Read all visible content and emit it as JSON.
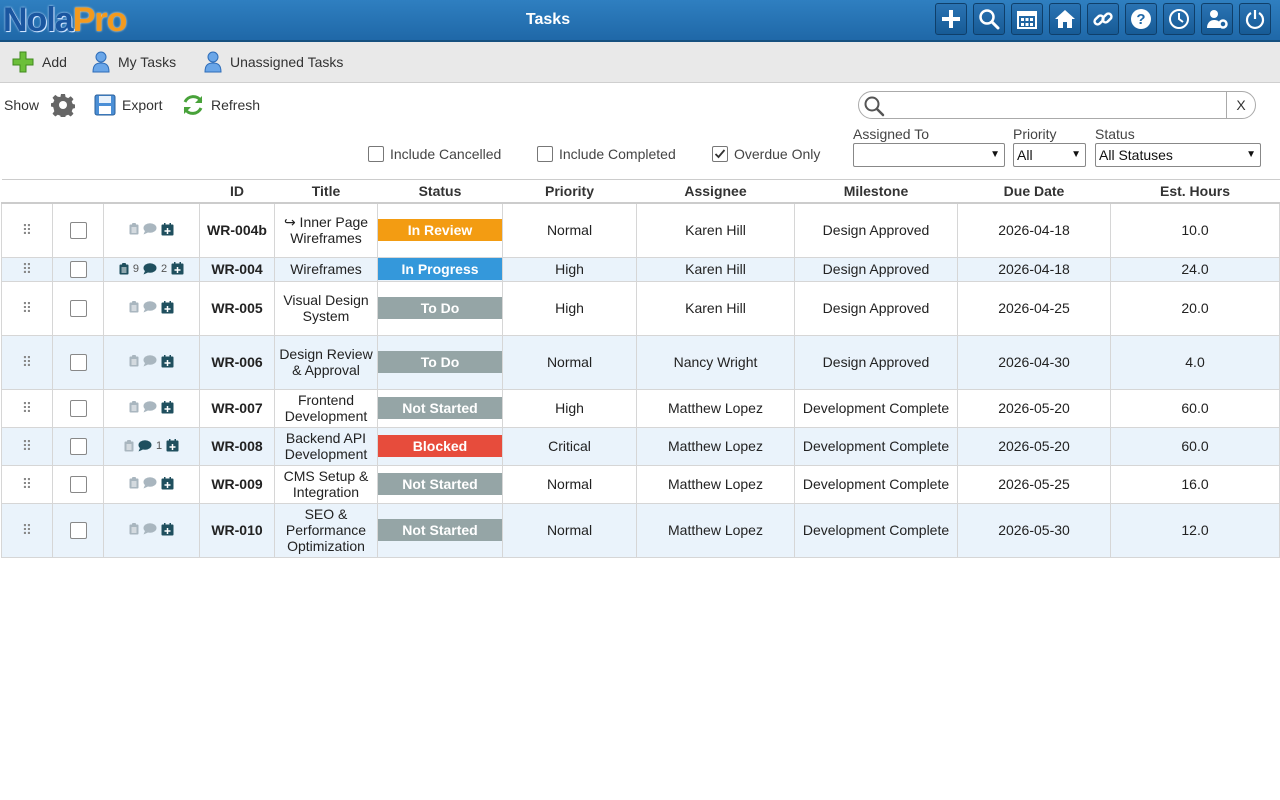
{
  "app": {
    "logo_part1": "Nola",
    "logo_part2": "Pro",
    "page_title": "Tasks"
  },
  "toolbar_icons": [
    "add-icon",
    "search-icon",
    "calendar-icon",
    "home-icon",
    "link-icon",
    "help-icon",
    "clock-icon",
    "user-settings-icon",
    "power-icon"
  ],
  "subbar": {
    "add": "Add",
    "my_tasks": "My Tasks",
    "unassigned": "Unassigned Tasks"
  },
  "panel": {
    "show": "Show",
    "export": "Export",
    "refresh": "Refresh",
    "search_placeholder": "",
    "search_clear": "X",
    "include_cancelled": "Include Cancelled",
    "include_completed": "Include Completed",
    "overdue_only": "Overdue Only",
    "assigned_to_label": "Assigned To",
    "assigned_to_value": "",
    "priority_label": "Priority",
    "priority_value": "All",
    "status_label": "Status",
    "status_value": "All Statuses"
  },
  "columns": [
    "",
    "",
    "",
    "ID",
    "Title",
    "Status",
    "Priority",
    "Assignee",
    "Milestone",
    "Due Date",
    "Est. Hours"
  ],
  "status_colors": {
    "In Review": "#f39c12",
    "In Progress": "#3498db",
    "To Do": "#95a5a6",
    "Not Started": "#95a5a6",
    "Blocked": "#e74c3c"
  },
  "rows": [
    {
      "id": "WR-004b",
      "title": "↪ Inner Page Wireframes",
      "status": "In Review",
      "priority": "Normal",
      "assignee": "Karen Hill",
      "milestone": "Design Approved",
      "due": "2026-04-18",
      "hours": "10.0",
      "docs": "",
      "comments": ""
    },
    {
      "id": "WR-004",
      "title": "Wireframes",
      "status": "In Progress",
      "priority": "High",
      "assignee": "Karen Hill",
      "milestone": "Design Approved",
      "due": "2026-04-18",
      "hours": "24.0",
      "docs": "9",
      "comments": "2"
    },
    {
      "id": "WR-005",
      "title": "Visual Design System",
      "status": "To Do",
      "priority": "High",
      "assignee": "Karen Hill",
      "milestone": "Design Approved",
      "due": "2026-04-25",
      "hours": "20.0",
      "docs": "",
      "comments": ""
    },
    {
      "id": "WR-006",
      "title": "Design Review & Approval",
      "status": "To Do",
      "priority": "Normal",
      "assignee": "Nancy Wright",
      "milestone": "Design Approved",
      "due": "2026-04-30",
      "hours": "4.0",
      "docs": "",
      "comments": ""
    },
    {
      "id": "WR-007",
      "title": "Frontend Development",
      "status": "Not Started",
      "priority": "High",
      "assignee": "Matthew Lopez",
      "milestone": "Development Complete",
      "due": "2026-05-20",
      "hours": "60.0",
      "docs": "",
      "comments": ""
    },
    {
      "id": "WR-008",
      "title": "Backend API Development",
      "status": "Blocked",
      "priority": "Critical",
      "assignee": "Matthew Lopez",
      "milestone": "Development Complete",
      "due": "2026-05-20",
      "hours": "60.0",
      "docs": "",
      "comments": "1"
    },
    {
      "id": "WR-009",
      "title": "CMS Setup & Integration",
      "status": "Not Started",
      "priority": "Normal",
      "assignee": "Matthew Lopez",
      "milestone": "Development Complete",
      "due": "2026-05-25",
      "hours": "16.0",
      "docs": "",
      "comments": ""
    },
    {
      "id": "WR-010",
      "title": "SEO & Performance Optimization",
      "status": "Not Started",
      "priority": "Normal",
      "assignee": "Matthew Lopez",
      "milestone": "Development Complete",
      "due": "2026-05-30",
      "hours": "12.0",
      "docs": "",
      "comments": ""
    }
  ]
}
